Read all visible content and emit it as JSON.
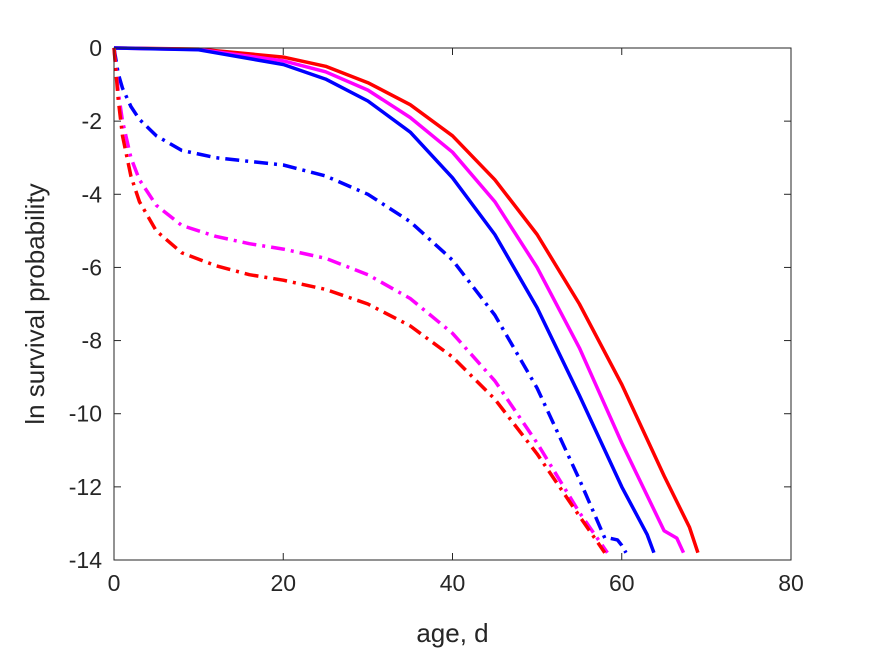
{
  "chart_data": {
    "type": "line",
    "title": "",
    "xlabel": "age, d",
    "ylabel": "ln survival probability",
    "xlim": [
      0,
      80
    ],
    "ylim": [
      -14,
      0
    ],
    "xticks": [
      0,
      20,
      40,
      60,
      80
    ],
    "yticks": [
      0,
      -2,
      -4,
      -6,
      -8,
      -10,
      -12,
      -14
    ],
    "xtick_labels": [
      "0",
      "20",
      "40",
      "60",
      "80"
    ],
    "ytick_labels": [
      "0",
      "-2",
      "-4",
      "-6",
      "-8",
      "-10",
      "-12",
      "-14"
    ],
    "grid": false,
    "legend": "none",
    "series": [
      {
        "color": "#ff0000",
        "style": "solid",
        "x": [
          0,
          10,
          20,
          25,
          30,
          35,
          40,
          45,
          50,
          55,
          60,
          65,
          68,
          69
        ],
        "y": [
          0,
          -0.03,
          -0.25,
          -0.5,
          -0.95,
          -1.55,
          -2.4,
          -3.6,
          -5.1,
          -7.0,
          -9.2,
          -11.7,
          -13.1,
          -13.8
        ]
      },
      {
        "color": "#ff00ff",
        "style": "solid",
        "x": [
          0,
          10,
          20,
          25,
          30,
          35,
          40,
          45,
          50,
          55,
          60,
          65,
          66.5,
          67.3
        ],
        "y": [
          0,
          -0.04,
          -0.35,
          -0.65,
          -1.15,
          -1.9,
          -2.85,
          -4.2,
          -6.0,
          -8.2,
          -10.8,
          -13.2,
          -13.4,
          -13.8
        ]
      },
      {
        "color": "#0000ff",
        "style": "solid",
        "x": [
          0,
          10,
          20,
          25,
          30,
          35,
          40,
          45,
          50,
          55,
          60,
          63,
          63.8
        ],
        "y": [
          0,
          -0.05,
          -0.45,
          -0.85,
          -1.45,
          -2.3,
          -3.55,
          -5.1,
          -7.1,
          -9.5,
          -12.0,
          -13.3,
          -13.8
        ]
      },
      {
        "color": "#0000ff",
        "style": "dashdot",
        "x": [
          0,
          0.5,
          1,
          2,
          3,
          5,
          8,
          12,
          16,
          20,
          25,
          30,
          35,
          40,
          45,
          50,
          55,
          58,
          58.5,
          59.5,
          60,
          60.5
        ],
        "y": [
          0,
          -0.7,
          -1.1,
          -1.6,
          -1.95,
          -2.4,
          -2.8,
          -3.0,
          -3.1,
          -3.2,
          -3.5,
          -4.0,
          -4.75,
          -5.8,
          -7.3,
          -9.3,
          -11.8,
          -13.4,
          -13.4,
          -13.45,
          -13.6,
          -13.8
        ]
      },
      {
        "color": "#ff00ff",
        "style": "dashdot",
        "x": [
          0,
          0.5,
          1,
          2,
          3,
          5,
          8,
          12,
          16,
          20,
          25,
          30,
          35,
          40,
          45,
          50,
          55,
          58.3
        ],
        "y": [
          0,
          -1.2,
          -2.0,
          -3.0,
          -3.6,
          -4.3,
          -4.85,
          -5.15,
          -5.35,
          -5.5,
          -5.75,
          -6.2,
          -6.85,
          -7.8,
          -9.1,
          -10.8,
          -12.7,
          -13.8
        ]
      },
      {
        "color": "#ff0000",
        "style": "dashdot",
        "x": [
          0,
          0.5,
          1,
          2,
          3,
          5,
          8,
          12,
          16,
          20,
          25,
          30,
          35,
          40,
          45,
          50,
          55,
          58
        ],
        "y": [
          0,
          -1.4,
          -2.4,
          -3.5,
          -4.2,
          -5.0,
          -5.6,
          -5.95,
          -6.2,
          -6.35,
          -6.6,
          -7.0,
          -7.6,
          -8.45,
          -9.6,
          -11.1,
          -12.8,
          -13.8
        ]
      }
    ]
  }
}
